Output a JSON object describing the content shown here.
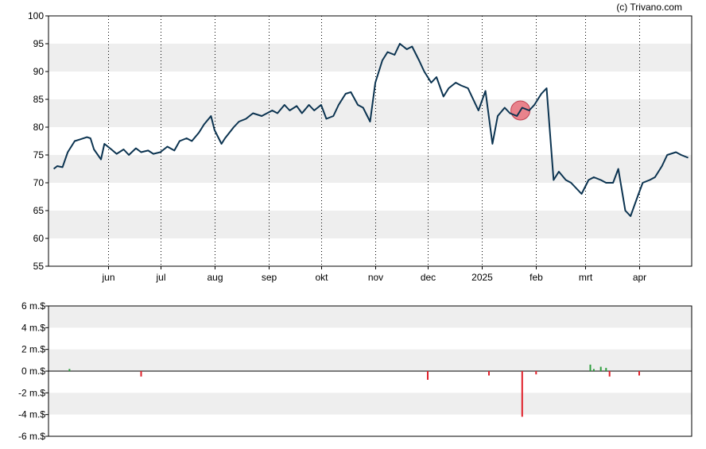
{
  "copyright": "(c) Trivano.com",
  "colors": {
    "line": "#0b3350",
    "band": "#eeeeee",
    "marker": "#e8707a",
    "vol_pos": "#2e9e3e",
    "vol_neg": "#e0202a"
  },
  "chart_data": [
    {
      "type": "line",
      "title": "",
      "ylim": [
        55,
        100
      ],
      "yticks": [
        "100",
        "95",
        "90",
        "85",
        "80",
        "75",
        "70",
        "65",
        "60",
        "55"
      ],
      "grid": "horizontal shaded bands, vertical dotted month lines",
      "xlabels": [
        "jun",
        "jul",
        "aug",
        "sep",
        "okt",
        "nov",
        "dec",
        "2025",
        "feb",
        "mrt",
        "apr"
      ],
      "x": [
        "2024-05-01",
        "2024-05-03",
        "2024-05-06",
        "2024-05-09",
        "2024-05-13",
        "2024-05-16",
        "2024-05-20",
        "2024-05-22",
        "2024-05-24",
        "2024-05-28",
        "2024-05-30",
        "2024-06-03",
        "2024-06-06",
        "2024-06-10",
        "2024-06-13",
        "2024-06-17",
        "2024-06-20",
        "2024-06-24",
        "2024-06-27",
        "2024-07-01",
        "2024-07-05",
        "2024-07-09",
        "2024-07-12",
        "2024-07-16",
        "2024-07-19",
        "2024-07-23",
        "2024-07-26",
        "2024-07-30",
        "2024-08-01",
        "2024-08-05",
        "2024-08-07",
        "2024-08-12",
        "2024-08-15",
        "2024-08-19",
        "2024-08-23",
        "2024-08-28",
        "2024-09-03",
        "2024-09-06",
        "2024-09-10",
        "2024-09-13",
        "2024-09-17",
        "2024-09-20",
        "2024-09-24",
        "2024-09-27",
        "2024-10-01",
        "2024-10-04",
        "2024-10-08",
        "2024-10-11",
        "2024-10-15",
        "2024-10-18",
        "2024-10-22",
        "2024-10-25",
        "2024-10-29",
        "2024-11-01",
        "2024-11-05",
        "2024-11-08",
        "2024-11-12",
        "2024-11-15",
        "2024-11-19",
        "2024-11-22",
        "2024-11-26",
        "2024-11-29",
        "2024-12-03",
        "2024-12-06",
        "2024-12-10",
        "2024-12-13",
        "2024-12-17",
        "2024-12-20",
        "2024-12-24",
        "2024-12-30",
        "2025-01-03",
        "2025-01-07",
        "2025-01-10",
        "2025-01-14",
        "2025-01-17",
        "2025-01-21",
        "2025-01-24",
        "2025-01-28",
        "2025-01-31",
        "2025-02-04",
        "2025-02-07",
        "2025-02-11",
        "2025-02-14",
        "2025-02-18",
        "2025-02-21",
        "2025-02-24",
        "2025-02-27",
        "2025-03-03",
        "2025-03-06",
        "2025-03-10",
        "2025-03-13",
        "2025-03-17",
        "2025-03-20",
        "2025-03-24",
        "2025-03-27",
        "2025-03-31",
        "2025-04-03",
        "2025-04-07",
        "2025-04-10",
        "2025-04-14",
        "2025-04-17",
        "2025-04-22",
        "2025-04-25",
        "2025-04-29"
      ],
      "values": [
        72.5,
        73.0,
        72.8,
        75.5,
        77.5,
        77.8,
        78.2,
        78.0,
        76.0,
        74.2,
        77.0,
        76.0,
        75.2,
        76.0,
        75.0,
        76.2,
        75.5,
        75.8,
        75.2,
        75.5,
        76.5,
        75.8,
        77.5,
        78.0,
        77.5,
        79.0,
        80.5,
        82.0,
        79.5,
        77.0,
        78.0,
        80.0,
        81.0,
        81.5,
        82.5,
        82.0,
        83.0,
        82.5,
        84.0,
        83.0,
        83.8,
        82.5,
        84.0,
        83.0,
        84.0,
        81.5,
        82.0,
        84.0,
        86.0,
        86.3,
        84.0,
        83.5,
        81.0,
        88.0,
        92.0,
        93.5,
        93.0,
        95.0,
        94.0,
        94.5,
        92.0,
        90.0,
        88.0,
        89.0,
        85.5,
        87.0,
        88.0,
        87.5,
        87.0,
        83.0,
        86.5,
        77.0,
        82.0,
        83.5,
        82.5,
        82.0,
        83.5,
        83.0,
        84.0,
        86.0,
        87.0,
        70.5,
        72.0,
        70.5,
        70.0,
        69.0,
        68.0,
        70.5,
        71.0,
        70.5,
        70.0,
        70.0,
        72.5,
        65.0,
        64.0,
        67.5,
        70.0,
        70.5,
        71.0,
        73.0,
        75.0,
        75.5,
        75.0,
        74.5
      ],
      "marker": {
        "x": "2025-01-23",
        "y": 83.0
      }
    },
    {
      "type": "bar",
      "title": "",
      "ylim": [
        -6,
        6
      ],
      "yticks": [
        "6 m.$",
        "4 m.$",
        "2 m.$",
        "0 m.$",
        "-2 m.$",
        "-4 m.$",
        "-6 m.$"
      ],
      "series": [
        {
          "x": "2024-05-10",
          "value": 0.2
        },
        {
          "x": "2024-06-20",
          "value": -0.5
        },
        {
          "x": "2024-12-01",
          "value": -0.8
        },
        {
          "x": "2025-01-05",
          "value": -0.4
        },
        {
          "x": "2025-01-24",
          "value": -4.2
        },
        {
          "x": "2025-02-01",
          "value": -0.3
        },
        {
          "x": "2025-03-04",
          "value": 0.6
        },
        {
          "x": "2025-03-06",
          "value": 0.2
        },
        {
          "x": "2025-03-10",
          "value": 0.4
        },
        {
          "x": "2025-03-13",
          "value": 0.3
        },
        {
          "x": "2025-03-15",
          "value": -0.5
        },
        {
          "x": "2025-04-01",
          "value": -0.4
        }
      ]
    }
  ]
}
